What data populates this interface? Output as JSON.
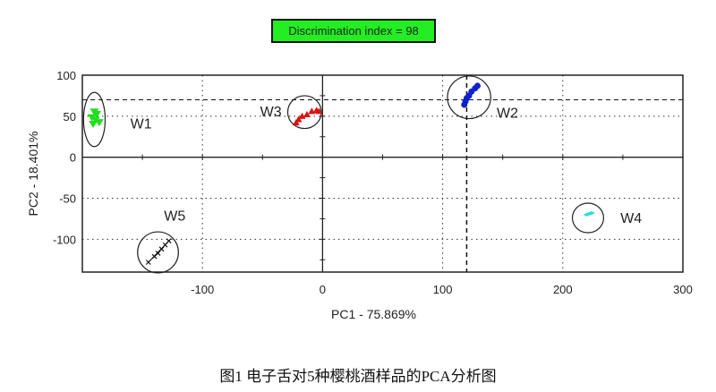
{
  "badge": "Discrimination index = 98",
  "caption": "图1 电子舌对5种樱桃酒样品的PCA分析图",
  "chart_data": {
    "type": "scatter",
    "xlabel": "PC1 - 75.869%",
    "ylabel": "PC2 - 18.401%",
    "xlim": [
      -200,
      300
    ],
    "ylim": [
      -140,
      100
    ],
    "xticks": [
      -100,
      0,
      100,
      200,
      300
    ],
    "yticks": [
      100,
      50,
      0,
      -50,
      -100
    ],
    "grid": "dotted",
    "reference_lines": {
      "x": 120,
      "y": 70
    },
    "series": [
      {
        "name": "W1",
        "color": "#22dd22",
        "marker": "triangle-down",
        "label_at": [
          -160,
          35
        ],
        "points": [
          [
            -190,
            55
          ],
          [
            -188,
            52
          ],
          [
            -192,
            48
          ],
          [
            -189,
            45
          ],
          [
            -186,
            42
          ],
          [
            -191,
            40
          ]
        ]
      },
      {
        "name": "W3",
        "color": "#dd1111",
        "marker": "triangle",
        "label_at": [
          -52,
          50
        ],
        "points": [
          [
            -22,
            42
          ],
          [
            -20,
            46
          ],
          [
            -17,
            50
          ],
          [
            -13,
            52
          ],
          [
            -9,
            56
          ],
          [
            -5,
            57
          ],
          [
            -3,
            56
          ]
        ]
      },
      {
        "name": "W2",
        "color": "#1122cc",
        "marker": "circle",
        "label_at": [
          145,
          48
        ],
        "points": [
          [
            118,
            64
          ],
          [
            119,
            68
          ],
          [
            120,
            72
          ],
          [
            122,
            75
          ],
          [
            124,
            80
          ],
          [
            127,
            84
          ],
          [
            129,
            87
          ]
        ]
      },
      {
        "name": "W4",
        "color": "#22dddd",
        "marker": "diamond",
        "label_at": [
          248,
          -80
        ],
        "points": [
          [
            220,
            -70
          ],
          [
            222,
            -69
          ],
          [
            224,
            -68
          ]
        ]
      },
      {
        "name": "W5",
        "color": "#111111",
        "marker": "x",
        "label_at": [
          -132,
          -77
        ],
        "points": [
          [
            -145,
            -128
          ],
          [
            -140,
            -121
          ],
          [
            -137,
            -117
          ],
          [
            -134,
            -112
          ],
          [
            -131,
            -107
          ],
          [
            -128,
            -102
          ]
        ]
      }
    ],
    "clusters": [
      {
        "name": "W1",
        "center": [
          -190,
          46
        ],
        "radius": [
          9,
          33
        ]
      },
      {
        "name": "W3",
        "center": [
          -15,
          55
        ],
        "radius": [
          14,
          20
        ]
      },
      {
        "name": "W2",
        "center": [
          122,
          73
        ],
        "radius": [
          18,
          26
        ]
      },
      {
        "name": "W4",
        "center": [
          221,
          -74
        ],
        "radius": [
          13,
          18
        ]
      },
      {
        "name": "W5",
        "center": [
          -137,
          -116
        ],
        "radius": [
          17,
          25
        ]
      }
    ]
  }
}
